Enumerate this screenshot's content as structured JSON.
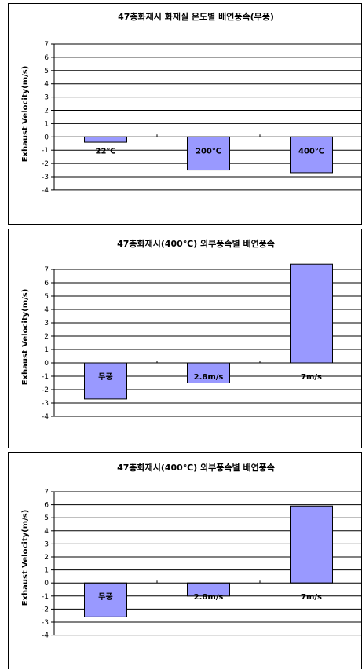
{
  "chart_data": [
    {
      "type": "bar",
      "title": "47층화재시 화재실 온도별 배연풍속(무풍)",
      "ylabel": "Exhaust Velocity(m/s)",
      "categories": [
        "22℃",
        "200℃",
        "400℃"
      ],
      "values": [
        -0.4,
        -2.5,
        -2.7
      ],
      "ylim": [
        -4,
        7
      ],
      "yticks": [
        7,
        6,
        5,
        4,
        3,
        2,
        1,
        0,
        -1,
        -2,
        -3,
        -4
      ],
      "grid": true,
      "bar_color": "#9999ff"
    },
    {
      "type": "bar",
      "title": "47층화재시(400℃) 외부풍속별 배연풍속",
      "ylabel": "Exhaust Velocity(m/s)",
      "categories": [
        "무풍",
        "2.8m/s",
        "7m/s"
      ],
      "values": [
        -2.7,
        -1.5,
        7.4
      ],
      "ylim": [
        -4,
        7
      ],
      "yticks": [
        7,
        6,
        5,
        4,
        3,
        2,
        1,
        0,
        -1,
        -2,
        -3,
        -4
      ],
      "grid": true,
      "bar_color": "#9999ff"
    },
    {
      "type": "bar",
      "title": "47층화재시(400℃) 외부풍속별 배연풍속",
      "ylabel": "Exhaust Velocity(m/s)",
      "categories": [
        "무풍",
        "2.8m/s",
        "7m/s"
      ],
      "values": [
        -2.6,
        -1.0,
        5.9
      ],
      "ylim": [
        -4,
        7
      ],
      "yticks": [
        7,
        6,
        5,
        4,
        3,
        2,
        1,
        0,
        -1,
        -2,
        -3,
        -4
      ],
      "grid": true,
      "bar_color": "#9999ff"
    }
  ]
}
